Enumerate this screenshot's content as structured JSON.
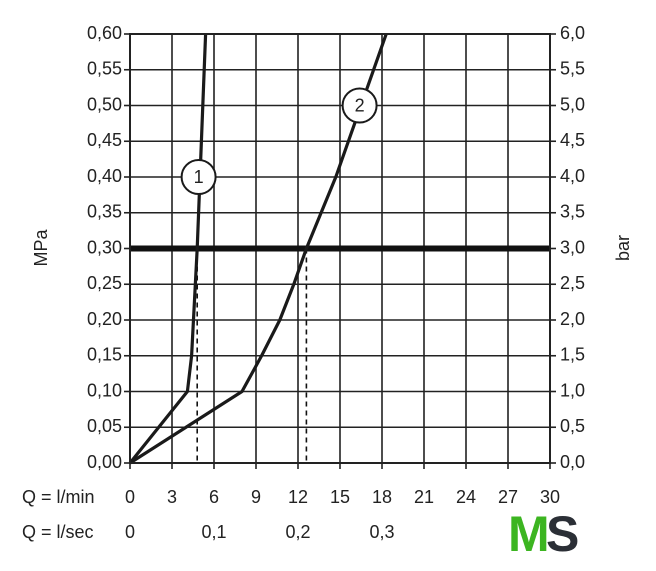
{
  "chart_data": {
    "type": "line",
    "y_label": "MPa",
    "y2_label": "bar",
    "x_label": "Q = l/min",
    "x2_label": "Q = l/sec",
    "xlim": [
      0,
      30
    ],
    "xticks": [
      0,
      3,
      6,
      9,
      12,
      15,
      18,
      21,
      24,
      27,
      30
    ],
    "x2lim": [
      0,
      0.5
    ],
    "x2ticks": [
      0,
      {
        "value": 0.1,
        "label": "0,1"
      },
      {
        "value": 0.2,
        "label": "0,2"
      },
      {
        "value": 0.3,
        "label": "0,3"
      }
    ],
    "ylim": [
      0,
      0.6
    ],
    "yticks": [
      {
        "value": 0,
        "label": "0,00"
      },
      {
        "value": 0.05,
        "label": "0,05"
      },
      {
        "value": 0.1,
        "label": "0,10"
      },
      {
        "value": 0.15,
        "label": "0,15"
      },
      {
        "value": 0.2,
        "label": "0,20"
      },
      {
        "value": 0.25,
        "label": "0,25"
      },
      {
        "value": 0.3,
        "label": "0,30"
      },
      {
        "value": 0.35,
        "label": "0,35"
      },
      {
        "value": 0.4,
        "label": "0,40"
      },
      {
        "value": 0.45,
        "label": "0,45"
      },
      {
        "value": 0.5,
        "label": "0,50"
      },
      {
        "value": 0.55,
        "label": "0,55"
      },
      {
        "value": 0.6,
        "label": "0,60"
      }
    ],
    "y2lim": [
      0,
      6
    ],
    "y2ticks": [
      {
        "value": 0,
        "label": "0,0"
      },
      {
        "value": 0.5,
        "label": "0,5"
      },
      {
        "value": 1,
        "label": "1,0"
      },
      {
        "value": 1.5,
        "label": "1,5"
      },
      {
        "value": 2,
        "label": "2,0"
      },
      {
        "value": 2.5,
        "label": "2,5"
      },
      {
        "value": 3,
        "label": "3,0"
      },
      {
        "value": 3.5,
        "label": "3,5"
      },
      {
        "value": 4,
        "label": "4,0"
      },
      {
        "value": 4.5,
        "label": "4,5"
      },
      {
        "value": 5,
        "label": "5,0"
      },
      {
        "value": 5.5,
        "label": "5,5"
      },
      {
        "value": 6,
        "label": "6,0"
      }
    ],
    "grid": true,
    "reference_y": 0.3,
    "drops": [
      {
        "x": 4.8,
        "y": 0.3
      },
      {
        "x": 12.6,
        "y": 0.3
      }
    ],
    "series": [
      {
        "name": "1",
        "color": "#1a1a1a",
        "x": [
          0,
          4.1,
          4.4,
          4.8,
          5.1,
          5.4
        ],
        "values": [
          0,
          0.1,
          0.15,
          0.3,
          0.45,
          0.6
        ],
        "label_at": {
          "x": 4.9,
          "y": 0.4
        }
      },
      {
        "name": "2",
        "color": "#1a1a1a",
        "x": [
          0,
          8,
          9.4,
          10.7,
          11.7,
          12.6,
          14.7,
          16.5,
          18.3
        ],
        "values": [
          0,
          0.1,
          0.15,
          0.2,
          0.25,
          0.3,
          0.4,
          0.5,
          0.6
        ],
        "label_at": {
          "x": 16.4,
          "y": 0.5
        }
      }
    ]
  },
  "logo": {
    "first": "M",
    "second": "S"
  }
}
